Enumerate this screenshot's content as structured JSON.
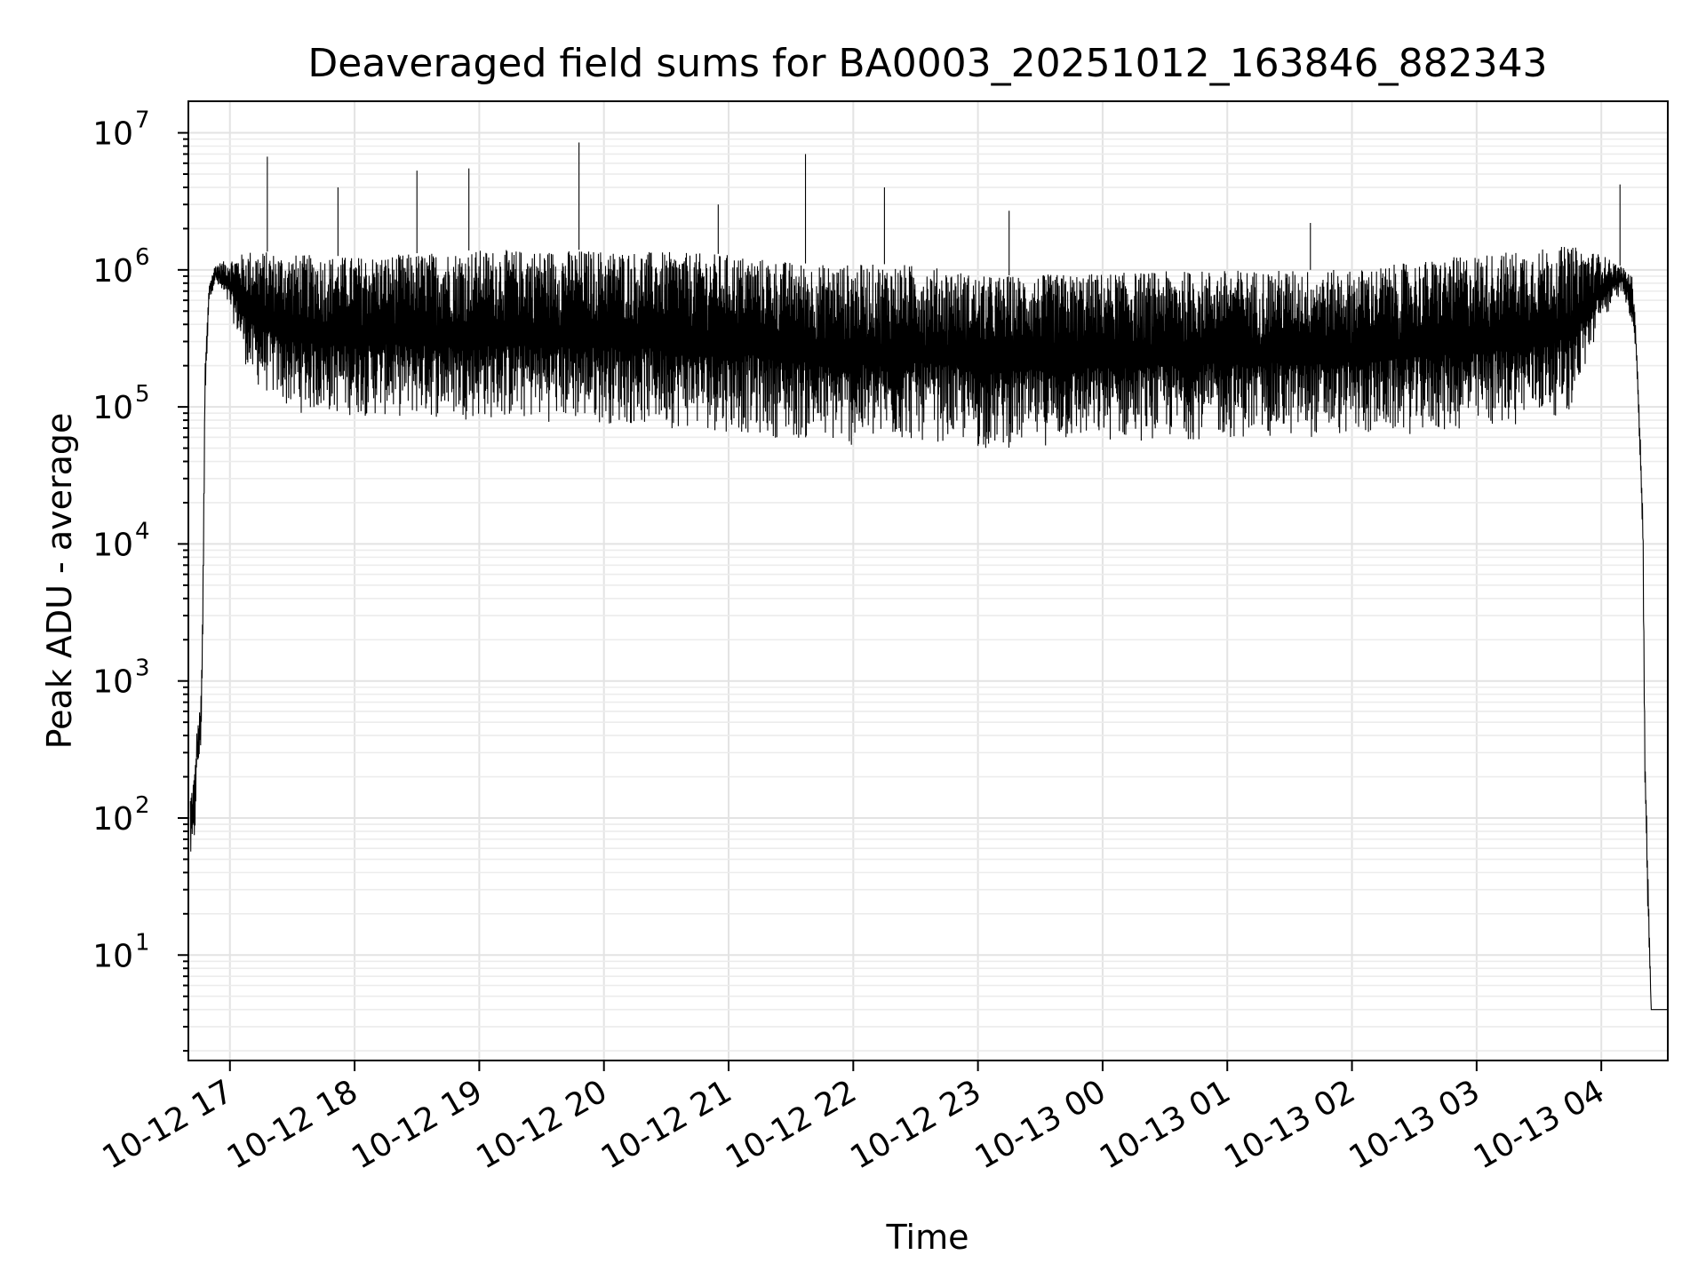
{
  "chart_data": {
    "type": "line",
    "title": "Deaveraged field sums for BA0003_20251012_163846_882343",
    "xlabel": "Time",
    "ylabel": "Peak ADU - average",
    "y_scale": "log",
    "ylim": [
      1.7,
      17000000
    ],
    "xlim": [
      "2025-10-12 16:40",
      "2025-10-13 04:32"
    ],
    "grid": "major and minor",
    "x_tick_labels": [
      "10-12 17",
      "10-12 18",
      "10-12 19",
      "10-12 20",
      "10-12 21",
      "10-12 22",
      "10-12 23",
      "10-13 00",
      "10-13 01",
      "10-13 02",
      "10-13 03",
      "10-13 04"
    ],
    "y_tick_labels": [
      {
        "base": "10",
        "exp": "1"
      },
      {
        "base": "10",
        "exp": "2"
      },
      {
        "base": "10",
        "exp": "3"
      },
      {
        "base": "10",
        "exp": "4"
      },
      {
        "base": "10",
        "exp": "5"
      },
      {
        "base": "10",
        "exp": "6"
      },
      {
        "base": "10",
        "exp": "7"
      }
    ],
    "series": [
      {
        "color": "#000000",
        "style": "oscillating envelope",
        "envelope": {
          "x": [
            "2025-10-12 16:41",
            "2025-10-12 16:43",
            "2025-10-12 16:44",
            "2025-10-12 16:46",
            "2025-10-12 16:47",
            "2025-10-12 16:48",
            "2025-10-12 16:50",
            "2025-10-12 16:53",
            "2025-10-12 17:00",
            "2025-10-12 17:10",
            "2025-10-12 17:30",
            "2025-10-12 18:00",
            "2025-10-12 19:00",
            "2025-10-12 20:00",
            "2025-10-12 21:00",
            "2025-10-12 21:40",
            "2025-10-12 22:00",
            "2025-10-12 22:25",
            "2025-10-12 22:50",
            "2025-10-12 23:00",
            "2025-10-13 00:00",
            "2025-10-13 01:00",
            "2025-10-13 02:00",
            "2025-10-13 03:00",
            "2025-10-13 03:45",
            "2025-10-13 04:00",
            "2025-10-13 04:10",
            "2025-10-13 04:15",
            "2025-10-13 04:17",
            "2025-10-13 04:20",
            "2025-10-13 04:21",
            "2025-10-13 04:22",
            "2025-10-13 04:24",
            "2025-10-13 04:32"
          ],
          "high": [
            150,
            220,
            420,
            700,
            5000,
            200000,
            800000,
            1100000,
            1200000,
            1400000,
            1300000,
            1250000,
            1400000,
            1400000,
            1300000,
            1100000,
            1100000,
            1100000,
            1000000,
            900000,
            950000,
            1000000,
            1000000,
            1300000,
            1500000,
            1300000,
            1050000,
            900000,
            300000,
            20000,
            300,
            90,
            4,
            4
          ],
          "low": [
            45,
            60,
            200,
            280,
            2000,
            100000,
            600000,
            800000,
            500000,
            150000,
            90000,
            85000,
            80000,
            75000,
            65000,
            55000,
            50000,
            55000,
            55000,
            48000,
            55000,
            58000,
            60000,
            65000,
            90000,
            400000,
            700000,
            400000,
            200000,
            10000,
            150,
            30,
            4,
            4
          ]
        },
        "spikes": [
          {
            "x": "2025-10-12 17:18",
            "y": 6700000
          },
          {
            "x": "2025-10-12 17:52",
            "y": 4000000
          },
          {
            "x": "2025-10-12 18:30",
            "y": 5300000
          },
          {
            "x": "2025-10-12 18:55",
            "y": 5500000
          },
          {
            "x": "2025-10-12 19:48",
            "y": 8500000
          },
          {
            "x": "2025-10-12 20:55",
            "y": 3000000
          },
          {
            "x": "2025-10-12 21:37",
            "y": 7000000
          },
          {
            "x": "2025-10-12 22:15",
            "y": 4000000
          },
          {
            "x": "2025-10-12 23:15",
            "y": 2700000
          },
          {
            "x": "2025-10-13 01:40",
            "y": 2200000
          },
          {
            "x": "2025-10-13 04:09",
            "y": 4200000
          }
        ]
      }
    ]
  }
}
